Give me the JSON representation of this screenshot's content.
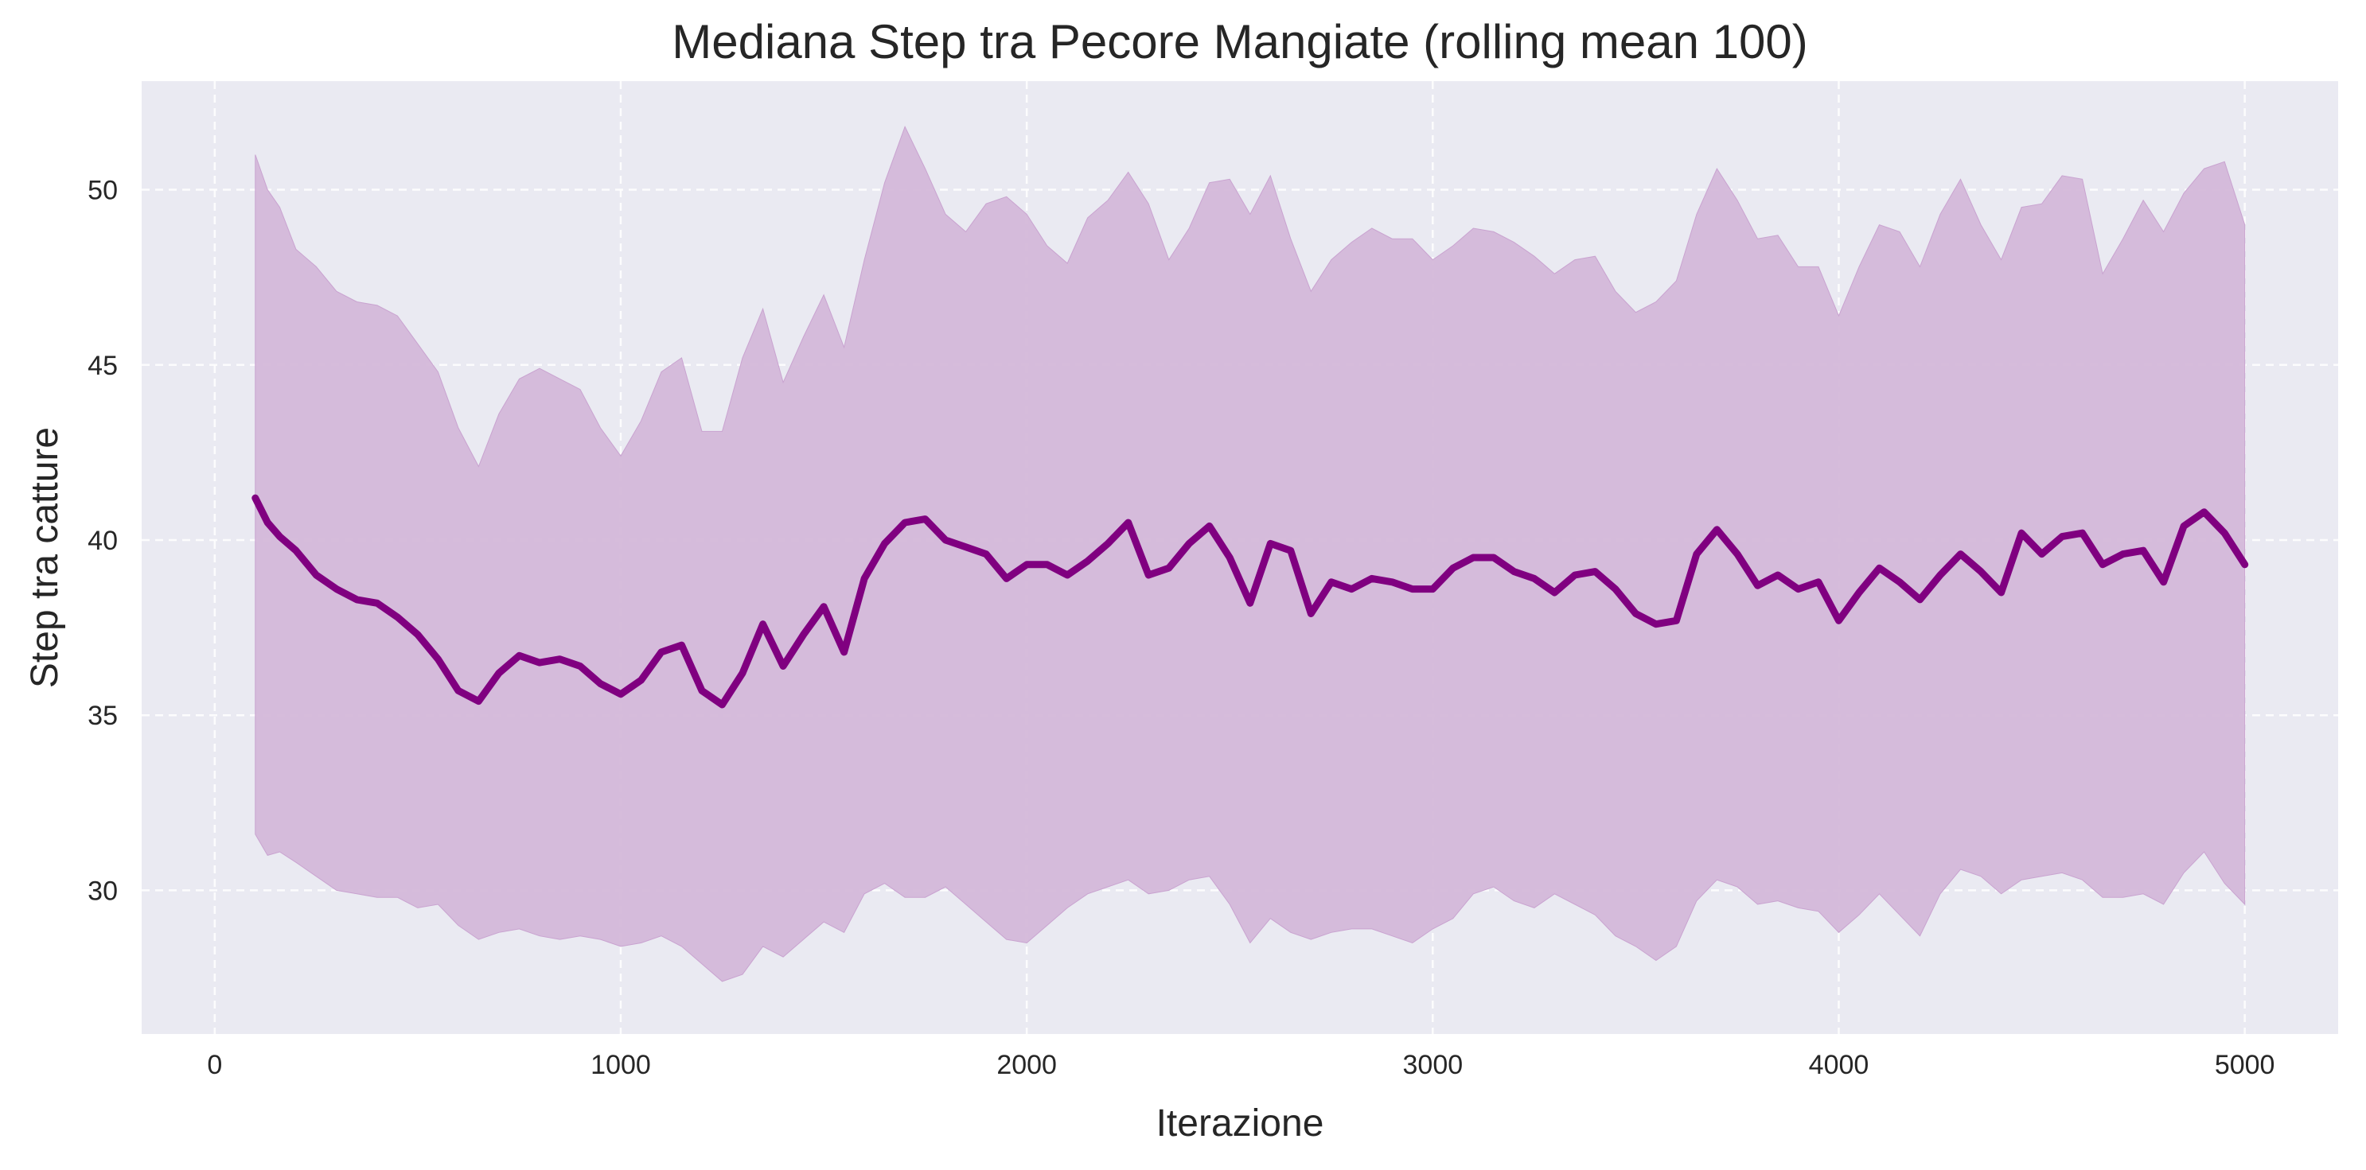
{
  "chart_data": {
    "type": "line",
    "title": "Mediana Step tra Pecore Mangiate (rolling mean 100)",
    "xlabel": "Iterazione",
    "ylabel": "Step tra catture",
    "xlim": [
      -180,
      5230
    ],
    "ylim": [
      25.9,
      53.1
    ],
    "xticks": [
      0,
      1000,
      2000,
      3000,
      4000,
      5000
    ],
    "yticks": [
      30,
      35,
      40,
      45,
      50
    ],
    "grid": true,
    "legend": "none",
    "colors": {
      "plot_background": "#eaeaf2",
      "line": "#800080",
      "band": "#d4b8d9"
    },
    "series": [
      {
        "values_kind": "rolling mean",
        "x": [
          100,
          130,
          160,
          200,
          250,
          300,
          350,
          400,
          450,
          500,
          550,
          600,
          650,
          700,
          750,
          800,
          850,
          900,
          950,
          1000,
          1050,
          1100,
          1150,
          1200,
          1250,
          1300,
          1350,
          1400,
          1450,
          1500,
          1550,
          1600,
          1650,
          1700,
          1750,
          1800,
          1850,
          1900,
          1950,
          2000,
          2050,
          2100,
          2150,
          2200,
          2250,
          2300,
          2350,
          2400,
          2450,
          2500,
          2550,
          2600,
          2650,
          2700,
          2750,
          2800,
          2850,
          2900,
          2950,
          3000,
          3050,
          3100,
          3150,
          3200,
          3250,
          3300,
          3350,
          3400,
          3450,
          3500,
          3550,
          3600,
          3650,
          3700,
          3750,
          3800,
          3850,
          3900,
          3950,
          4000,
          4050,
          4100,
          4150,
          4200,
          4250,
          4300,
          4350,
          4400,
          4450,
          4500,
          4550,
          4600,
          4650,
          4700,
          4750,
          4800,
          4850,
          4900,
          4950,
          5000
        ],
        "y": [
          41.2,
          40.5,
          40.1,
          39.7,
          39.0,
          38.6,
          38.3,
          38.2,
          37.8,
          37.3,
          36.6,
          35.7,
          35.4,
          36.2,
          36.7,
          36.5,
          36.6,
          36.4,
          35.9,
          35.6,
          36.0,
          36.8,
          37.0,
          35.7,
          35.3,
          36.2,
          37.6,
          36.4,
          37.3,
          38.1,
          36.8,
          38.9,
          39.9,
          40.5,
          40.6,
          40.0,
          39.8,
          39.6,
          38.9,
          39.3,
          39.3,
          39.0,
          39.4,
          39.9,
          40.5,
          39.0,
          39.2,
          39.9,
          40.4,
          39.5,
          38.2,
          39.9,
          39.7,
          37.9,
          38.8,
          38.6,
          38.9,
          38.8,
          38.6,
          38.6,
          39.2,
          39.5,
          39.5,
          39.1,
          38.9,
          38.5,
          39.0,
          39.1,
          38.6,
          37.9,
          37.6,
          37.7,
          39.6,
          40.3,
          39.6,
          38.7,
          39.0,
          38.6,
          38.8,
          37.7,
          38.5,
          39.2,
          38.8,
          38.3,
          39.0,
          39.6,
          39.1,
          38.5,
          40.2,
          39.6,
          40.1,
          40.2,
          39.3,
          39.6,
          39.7,
          38.8,
          40.4,
          40.8,
          40.2,
          39.3
        ]
      },
      {
        "values_kind": "band upper",
        "x": [
          100,
          130,
          160,
          200,
          250,
          300,
          350,
          400,
          450,
          500,
          550,
          600,
          650,
          700,
          750,
          800,
          850,
          900,
          950,
          1000,
          1050,
          1100,
          1150,
          1200,
          1250,
          1300,
          1350,
          1400,
          1450,
          1500,
          1550,
          1600,
          1650,
          1700,
          1750,
          1800,
          1850,
          1900,
          1950,
          2000,
          2050,
          2100,
          2150,
          2200,
          2250,
          2300,
          2350,
          2400,
          2450,
          2500,
          2550,
          2600,
          2650,
          2700,
          2750,
          2800,
          2850,
          2900,
          2950,
          3000,
          3050,
          3100,
          3150,
          3200,
          3250,
          3300,
          3350,
          3400,
          3450,
          3500,
          3550,
          3600,
          3650,
          3700,
          3750,
          3800,
          3850,
          3900,
          3950,
          4000,
          4050,
          4100,
          4150,
          4200,
          4250,
          4300,
          4350,
          4400,
          4450,
          4500,
          4550,
          4600,
          4650,
          4700,
          4750,
          4800,
          4850,
          4900,
          4950,
          5000
        ],
        "y": [
          51.0,
          50.0,
          49.5,
          48.3,
          47.8,
          47.1,
          46.8,
          46.7,
          46.4,
          45.6,
          44.8,
          43.2,
          42.1,
          43.6,
          44.6,
          44.9,
          44.6,
          44.3,
          43.2,
          42.4,
          43.4,
          44.8,
          45.2,
          43.1,
          43.1,
          45.2,
          46.6,
          44.5,
          45.8,
          47.0,
          45.5,
          48.0,
          50.2,
          51.8,
          50.6,
          49.3,
          48.8,
          49.6,
          49.8,
          49.3,
          48.4,
          47.9,
          49.2,
          49.7,
          50.5,
          49.6,
          48.0,
          48.9,
          50.2,
          50.3,
          49.3,
          50.4,
          48.6,
          47.1,
          48.0,
          48.5,
          48.9,
          48.6,
          48.6,
          48.0,
          48.4,
          48.9,
          48.8,
          48.5,
          48.1,
          47.6,
          48.0,
          48.1,
          47.1,
          46.5,
          46.8,
          47.4,
          49.3,
          50.6,
          49.7,
          48.6,
          48.7,
          47.8,
          47.8,
          46.4,
          47.8,
          49.0,
          48.8,
          47.8,
          49.3,
          50.3,
          49.0,
          48.0,
          49.5,
          49.6,
          50.4,
          50.3,
          47.6,
          48.6,
          49.7,
          48.8,
          49.9,
          50.6,
          50.8,
          49.0
        ]
      },
      {
        "values_kind": "band lower",
        "x": [
          100,
          130,
          160,
          200,
          250,
          300,
          350,
          400,
          450,
          500,
          550,
          600,
          650,
          700,
          750,
          800,
          850,
          900,
          950,
          1000,
          1050,
          1100,
          1150,
          1200,
          1250,
          1300,
          1350,
          1400,
          1450,
          1500,
          1550,
          1600,
          1650,
          1700,
          1750,
          1800,
          1850,
          1900,
          1950,
          2000,
          2050,
          2100,
          2150,
          2200,
          2250,
          2300,
          2350,
          2400,
          2450,
          2500,
          2550,
          2600,
          2650,
          2700,
          2750,
          2800,
          2850,
          2900,
          2950,
          3000,
          3050,
          3100,
          3150,
          3200,
          3250,
          3300,
          3350,
          3400,
          3450,
          3500,
          3550,
          3600,
          3650,
          3700,
          3750,
          3800,
          3850,
          3900,
          3950,
          4000,
          4050,
          4100,
          4150,
          4200,
          4250,
          4300,
          4350,
          4400,
          4450,
          4500,
          4550,
          4600,
          4650,
          4700,
          4750,
          4800,
          4850,
          4900,
          4950,
          5000
        ],
        "y": [
          31.6,
          31.0,
          31.1,
          30.8,
          30.4,
          30.0,
          29.9,
          29.8,
          29.8,
          29.5,
          29.6,
          29.0,
          28.6,
          28.8,
          28.9,
          28.7,
          28.6,
          28.7,
          28.6,
          28.4,
          28.5,
          28.7,
          28.4,
          27.9,
          27.4,
          27.6,
          28.4,
          28.1,
          28.6,
          29.1,
          28.8,
          29.9,
          30.2,
          29.8,
          29.8,
          30.1,
          29.6,
          29.1,
          28.6,
          28.5,
          29.0,
          29.5,
          29.9,
          30.1,
          30.3,
          29.9,
          30.0,
          30.3,
          30.4,
          29.6,
          28.5,
          29.2,
          28.8,
          28.6,
          28.8,
          28.9,
          28.9,
          28.7,
          28.5,
          28.9,
          29.2,
          29.9,
          30.1,
          29.7,
          29.5,
          29.9,
          29.6,
          29.3,
          28.7,
          28.4,
          28.0,
          28.4,
          29.7,
          30.3,
          30.1,
          29.6,
          29.7,
          29.5,
          29.4,
          28.8,
          29.3,
          29.9,
          29.3,
          28.7,
          29.9,
          30.6,
          30.4,
          29.9,
          30.3,
          30.4,
          30.5,
          30.3,
          29.8,
          29.8,
          29.9,
          29.6,
          30.5,
          31.1,
          30.2,
          29.6
        ]
      }
    ]
  }
}
